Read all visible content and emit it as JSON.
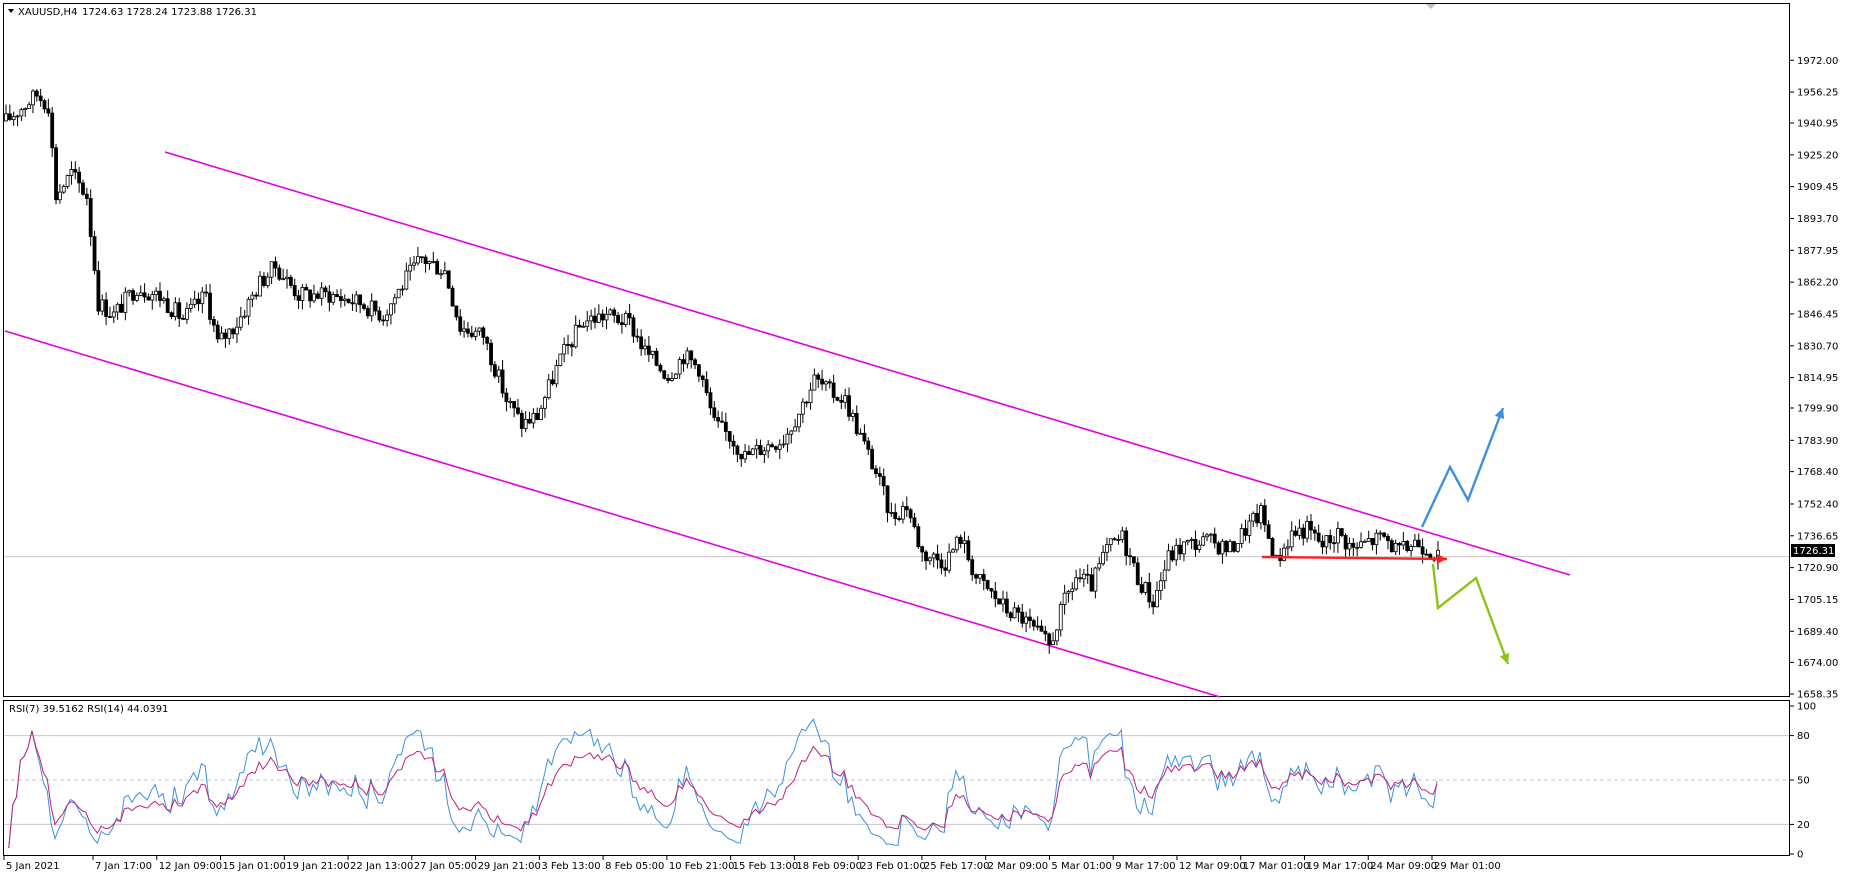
{
  "header": {
    "symbol": "XAUUSD,H4",
    "ohlc": "1724.63 1728.24 1723.88 1726.31"
  },
  "rsi_header": {
    "text": "RSI(7) 39.5162  RSI(14) 44.0391"
  },
  "colors": {
    "candle": "#000000",
    "channel": "#e000e0",
    "red_arrow": "#ff2020",
    "blue_arrow": "#3d8fe0",
    "green_arrow": "#8cc418",
    "rsi7": "#3d8fe0",
    "rsi14": "#c0207a",
    "grid": "#c8c8c8"
  },
  "chart_data": [
    {
      "type": "candlestick",
      "symbol": "XAUUSD",
      "timeframe": "H4",
      "ylim": [
        1658.35,
        1988.0
      ],
      "y_ticks": [
        "1972.00",
        "1956.25",
        "1940.95",
        "1925.20",
        "1909.45",
        "1893.70",
        "1877.95",
        "1862.20",
        "1846.45",
        "1830.70",
        "1814.95",
        "1799.90",
        "1783.90",
        "1768.40",
        "1752.40",
        "1736.65",
        "1720.90",
        "1705.15",
        "1689.40",
        "1674.00",
        "1658.35"
      ],
      "x_ticks": [
        "5 Jan 2021",
        "7 Jan 17:00",
        "12 Jan 09:00",
        "15 Jan 01:00",
        "19 Jan 21:00",
        "22 Jan 13:00",
        "27 Jan 05:00",
        "29 Jan 21:00",
        "3 Feb 13:00",
        "8 Feb 05:00",
        "10 Feb 21:00",
        "15 Feb 13:00",
        "18 Feb 09:00",
        "23 Feb 01:00",
        "25 Feb 17:00",
        "2 Mar 09:00",
        "5 Mar 01:00",
        "9 Mar 17:00",
        "12 Mar 09:00",
        "17 Mar 01:00",
        "19 Mar 17:00",
        "24 Mar 09:00",
        "29 Mar 01:00"
      ],
      "current_price": "1726.31",
      "close_path": [
        [
          0,
          1942
        ],
        [
          8,
          1955
        ],
        [
          11,
          1950
        ],
        [
          13,
          1905
        ],
        [
          17,
          1916
        ],
        [
          21,
          1905
        ],
        [
          24,
          1852
        ],
        [
          28,
          1846
        ],
        [
          34,
          1860
        ],
        [
          40,
          1855
        ],
        [
          46,
          1844
        ],
        [
          52,
          1856
        ],
        [
          55,
          1832
        ],
        [
          60,
          1842
        ],
        [
          66,
          1862
        ],
        [
          70,
          1870
        ],
        [
          76,
          1856
        ],
        [
          84,
          1856
        ],
        [
          92,
          1852
        ],
        [
          98,
          1846
        ],
        [
          104,
          1864
        ],
        [
          108,
          1874
        ],
        [
          114,
          1868
        ],
        [
          118,
          1840
        ],
        [
          124,
          1836
        ],
        [
          130,
          1804
        ],
        [
          134,
          1792
        ],
        [
          138,
          1796
        ],
        [
          144,
          1824
        ],
        [
          150,
          1843
        ],
        [
          156,
          1846
        ],
        [
          162,
          1842
        ],
        [
          166,
          1828
        ],
        [
          172,
          1816
        ],
        [
          176,
          1826
        ],
        [
          180,
          1820
        ],
        [
          184,
          1792
        ],
        [
          188,
          1786
        ],
        [
          192,
          1776
        ],
        [
          196,
          1780
        ],
        [
          202,
          1785
        ],
        [
          206,
          1798
        ],
        [
          210,
          1814
        ],
        [
          214,
          1808
        ],
        [
          218,
          1804
        ],
        [
          222,
          1786
        ],
        [
          226,
          1768
        ],
        [
          230,
          1746
        ],
        [
          234,
          1752
        ],
        [
          238,
          1728
        ],
        [
          244,
          1724
        ],
        [
          248,
          1736
        ],
        [
          252,
          1716
        ],
        [
          256,
          1708
        ],
        [
          260,
          1700
        ],
        [
          264,
          1696
        ],
        [
          268,
          1688
        ],
        [
          271,
          1682
        ],
        [
          275,
          1704
        ],
        [
          278,
          1716
        ],
        [
          282,
          1712
        ],
        [
          286,
          1730
        ],
        [
          290,
          1736
        ],
        [
          294,
          1716
        ],
        [
          298,
          1704
        ],
        [
          302,
          1726
        ],
        [
          306,
          1732
        ],
        [
          312,
          1734
        ],
        [
          318,
          1730
        ],
        [
          322,
          1740
        ],
        [
          326,
          1748
        ],
        [
          330,
          1724
        ],
        [
          334,
          1738
        ],
        [
          338,
          1740
        ],
        [
          342,
          1732
        ],
        [
          346,
          1738
        ],
        [
          350,
          1730
        ],
        [
          354,
          1734
        ],
        [
          358,
          1736
        ],
        [
          362,
          1728
        ],
        [
          366,
          1734
        ],
        [
          370,
          1730
        ],
        [
          372,
          1726
        ]
      ],
      "rsi_panel": {
        "ylim": [
          0,
          100
        ],
        "y_ticks": [
          "100",
          "80",
          "50",
          "20",
          "0"
        ],
        "levels": [
          80,
          50,
          20
        ],
        "series": [
          {
            "name": "RSI(7)",
            "last": 39.5162
          },
          {
            "name": "RSI(14)",
            "last": 44.0391
          }
        ]
      }
    }
  ]
}
